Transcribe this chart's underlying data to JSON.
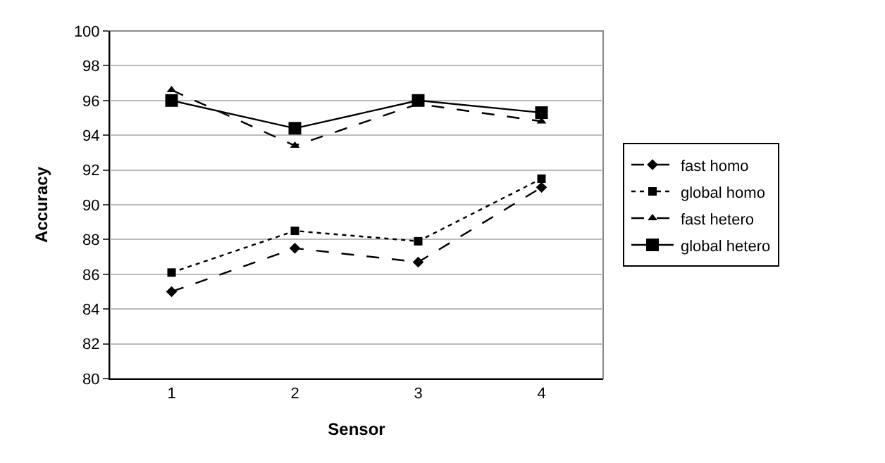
{
  "chart_data": {
    "type": "line",
    "xlabel": "Sensor",
    "ylabel": "Accuracy",
    "categories": [
      "1",
      "2",
      "3",
      "4"
    ],
    "series": [
      {
        "name": "fast homo",
        "color": "#000000",
        "marker": "diamond",
        "line_style": "dashed",
        "values": [
          85.0,
          87.5,
          86.7,
          91.0
        ]
      },
      {
        "name": "global homo",
        "color": "#000000",
        "marker": "square",
        "line_style": "dotted",
        "values": [
          86.1,
          88.5,
          87.9,
          91.5
        ]
      },
      {
        "name": "fast hetero",
        "color": "#000000",
        "marker": "triangle",
        "line_style": "dashed",
        "values": [
          96.6,
          93.4,
          95.8,
          94.8
        ]
      },
      {
        "name": "global hetero",
        "color": "#000000",
        "marker": "square",
        "line_style": "solid",
        "values": [
          96.0,
          94.4,
          96.0,
          95.3
        ]
      }
    ],
    "ylim": [
      80,
      100
    ],
    "yticks": [
      80,
      82,
      84,
      86,
      88,
      90,
      92,
      94,
      96,
      98,
      100
    ],
    "grid": "y",
    "legend": "right"
  }
}
